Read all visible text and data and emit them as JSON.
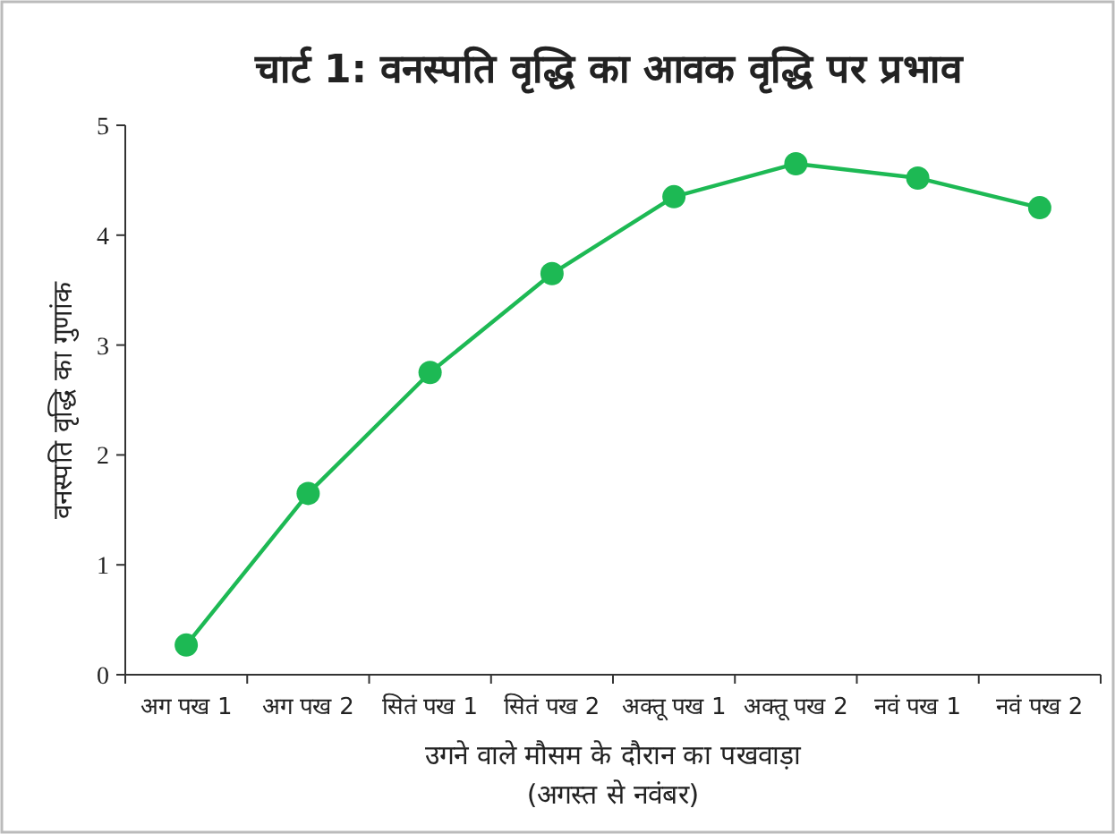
{
  "chart_data": {
    "type": "line",
    "title": "चार्ट 1: वनस्पति वृद्धि का आवक वृद्धि पर प्रभाव",
    "xlabel": "उगने वाले मौसम के दौरान का पखवाड़ा (अगस्त से नवंबर)",
    "ylabel": "वनस्पति वृद्धि का गुणांक",
    "categories": [
      "अग पख 1",
      "अग पख 2",
      "सितं पख 1",
      "सितं पख 2",
      "अक्तू पख 1",
      "अक्तू पख 2",
      "नवं पख 1",
      "नवं पख 2"
    ],
    "series": [
      {
        "color": "#1db954",
        "values": [
          0.27,
          1.65,
          2.75,
          3.65,
          4.35,
          4.65,
          4.52,
          4.25
        ]
      }
    ],
    "ylim": [
      0,
      5
    ],
    "yticks": [
      0,
      1,
      2,
      3,
      4,
      5
    ],
    "marker": "circle",
    "line_style": "solid",
    "grid": false
  }
}
